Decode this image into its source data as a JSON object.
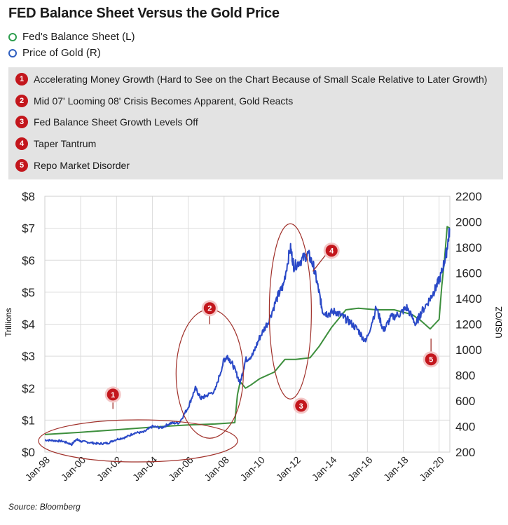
{
  "title": "FED Balance Sheet Versus the Gold Price",
  "legend": [
    {
      "label": "Fed's Balance Sheet (L)",
      "color": "#2e9e4e"
    },
    {
      "label": "Price of Gold (R)",
      "color": "#2f5fbf"
    }
  ],
  "annotations": [
    {
      "num": "1",
      "text": "Accelerating Money Growth (Hard to See on the Chart Because of Small Scale Relative to Later Growth)"
    },
    {
      "num": "2",
      "text": "Mid 07' Looming 08' Crisis Becomes Apparent, Gold Reacts"
    },
    {
      "num": "3",
      "text": "Fed Balance Sheet Growth Levels Off"
    },
    {
      "num": "4",
      "text": "Taper Tantrum"
    },
    {
      "num": "5",
      "text": "Repo Market Disorder"
    }
  ],
  "source": "Source: Bloomberg",
  "colors": {
    "fed": "#3d8f3d",
    "gold": "#2a49c7",
    "badge": "#c3161c",
    "ellipse": "#a0302a"
  },
  "chart_data": {
    "type": "line",
    "ylabel": "Trillions",
    "y2label": "USD/OZ",
    "ylim": [
      0,
      8
    ],
    "y2lim": [
      200,
      2200
    ],
    "yticks": [
      "$0",
      "$1",
      "$2",
      "$3",
      "$4",
      "$5",
      "$6",
      "$7",
      "$8"
    ],
    "y2ticks": [
      "200",
      "400",
      "600",
      "800",
      "1000",
      "1200",
      "1400",
      "1600",
      "1800",
      "2000",
      "2200"
    ],
    "xlim": [
      1998.0,
      2020.6
    ],
    "xticks": [
      {
        "label": "Jan-98",
        "x": 1998
      },
      {
        "label": "Jan-00",
        "x": 2000
      },
      {
        "label": "Jan-02",
        "x": 2002
      },
      {
        "label": "Jan-04",
        "x": 2004
      },
      {
        "label": "Jan-06",
        "x": 2006
      },
      {
        "label": "Jan-08",
        "x": 2008
      },
      {
        "label": "Jan-10",
        "x": 2010
      },
      {
        "label": "Jan-12",
        "x": 2012
      },
      {
        "label": "Jan-14",
        "x": 2014
      },
      {
        "label": "Jan-16",
        "x": 2016
      },
      {
        "label": "Jan-18",
        "x": 2018
      },
      {
        "label": "Jan-20",
        "x": 2020
      }
    ],
    "grid": true,
    "series": [
      {
        "name": "Fed's Balance Sheet (L)",
        "axis": "left",
        "x": [
          1998.0,
          2000.0,
          2002.0,
          2004.0,
          2006.0,
          2007.5,
          2008.6,
          2008.75,
          2008.9,
          2009.2,
          2009.5,
          2010.0,
          2010.8,
          2011.4,
          2012.0,
          2012.8,
          2013.3,
          2014.0,
          2014.8,
          2015.5,
          2016.5,
          2017.5,
          2018.5,
          2019.0,
          2019.5,
          2019.75,
          2020.0,
          2020.15,
          2020.3,
          2020.45,
          2020.6
        ],
        "values": [
          0.55,
          0.62,
          0.7,
          0.78,
          0.85,
          0.88,
          0.92,
          1.8,
          2.2,
          2.0,
          2.1,
          2.3,
          2.5,
          2.9,
          2.9,
          2.95,
          3.3,
          3.9,
          4.45,
          4.5,
          4.45,
          4.45,
          4.3,
          4.1,
          3.85,
          4.0,
          4.15,
          5.2,
          6.0,
          7.05,
          7.0
        ]
      },
      {
        "name": "Price of Gold (R)",
        "axis": "right",
        "x": [
          1998.0,
          1998.5,
          1999.0,
          1999.5,
          1999.75,
          2000.0,
          2000.5,
          2001.0,
          2001.5,
          2002.0,
          2002.5,
          2003.0,
          2003.5,
          2004.0,
          2004.5,
          2005.0,
          2005.5,
          2006.0,
          2006.4,
          2006.7,
          2007.0,
          2007.5,
          2008.0,
          2008.2,
          2008.5,
          2008.9,
          2009.2,
          2009.6,
          2010.0,
          2010.5,
          2011.0,
          2011.3,
          2011.7,
          2011.9,
          2012.3,
          2012.7,
          2013.0,
          2013.3,
          2013.5,
          2013.8,
          2014.2,
          2014.6,
          2015.0,
          2015.5,
          2015.9,
          2016.5,
          2016.9,
          2017.3,
          2017.8,
          2018.2,
          2018.7,
          2019.0,
          2019.5,
          2019.8,
          2020.1,
          2020.4,
          2020.6
        ],
        "values": [
          295,
          290,
          285,
          260,
          300,
          285,
          275,
          265,
          270,
          300,
          315,
          350,
          355,
          400,
          390,
          425,
          430,
          550,
          700,
          620,
          640,
          680,
          920,
          950,
          880,
          740,
          920,
          960,
          1100,
          1230,
          1420,
          1500,
          1800,
          1650,
          1700,
          1750,
          1650,
          1450,
          1300,
          1280,
          1300,
          1260,
          1220,
          1150,
          1060,
          1330,
          1150,
          1250,
          1280,
          1330,
          1200,
          1290,
          1400,
          1480,
          1580,
          1750,
          1950
        ]
      }
    ],
    "callouts": [
      {
        "num": "1",
        "x": 2000.8,
        "y": 0.1,
        "value_on": "left"
      },
      {
        "num": "2",
        "x": 2007.1,
        "y": 1.1,
        "value_on": "left"
      },
      {
        "num": "3",
        "x": 2012.4,
        "y": 4.2,
        "value_on": "left"
      },
      {
        "num": "4",
        "x": 2013.2,
        "y": 5.5,
        "value_on": "left"
      },
      {
        "num": "5",
        "x": 2019.5,
        "y": 3.9,
        "value_on": "left"
      }
    ]
  }
}
